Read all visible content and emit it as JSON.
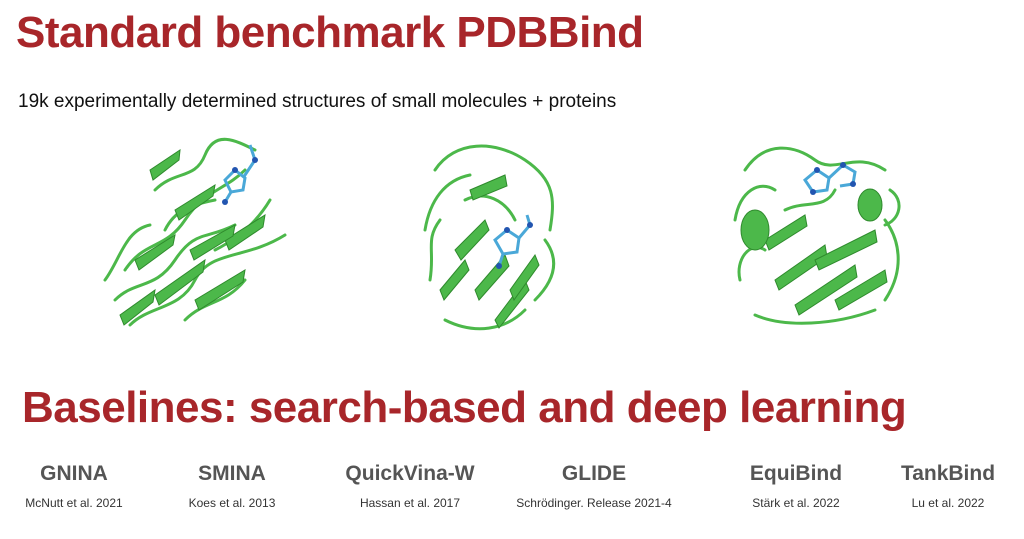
{
  "title": "Standard benchmark PDBBind",
  "subtitle": "19k experimentally determined structures of small molecules + proteins",
  "section_title": "Baselines: search-based and deep learning",
  "structures": [
    {
      "name": "protein-structure-1"
    },
    {
      "name": "protein-structure-2"
    },
    {
      "name": "protein-structure-3"
    }
  ],
  "baselines": [
    {
      "name": "GNINA",
      "cite": "McNutt et al. 2021"
    },
    {
      "name": "SMINA",
      "cite": "Koes et al. 2013"
    },
    {
      "name": "QuickVina-W",
      "cite": "Hassan et al. 2017"
    },
    {
      "name": "GLIDE",
      "cite": "Schrödinger. Release 2021-4"
    },
    {
      "name": "EquiBind",
      "cite": "Stärk et al. 2022"
    },
    {
      "name": "TankBind",
      "cite": "Lu et al. 2022"
    }
  ],
  "colors": {
    "accent": "#a8262a",
    "protein": "#4cb84a",
    "protein_dark": "#2e8a2c",
    "ligand": "#4aa8d8",
    "ligand_dark": "#2255b0"
  }
}
